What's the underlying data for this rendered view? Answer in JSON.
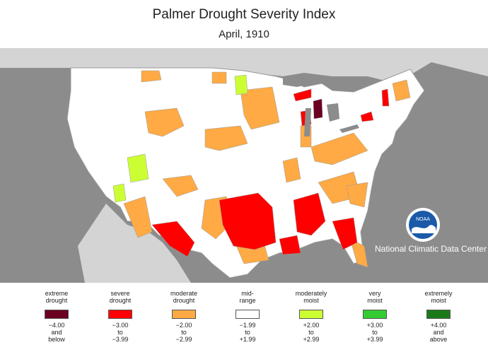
{
  "title": "Palmer Drought Severity Index",
  "subtitle": "April, 1910",
  "agency": "National Climatic Data Center",
  "logo_text": "NOAA",
  "colors": {
    "extreme_drought": "#6b0021",
    "severe_drought": "#ff0000",
    "moderate_drought": "#ffaa44",
    "mid_range": "#ffffff",
    "moderately_moist": "#ccff33",
    "very_moist": "#33cc33",
    "extremely_moist": "#1a7a1a",
    "background": "#8c8c8c",
    "land_outside": "#d4d4d4"
  },
  "legend": [
    {
      "label": "extreme\ndrought",
      "range": "−4.00\nand\nbelow",
      "color": "#6b0021"
    },
    {
      "label": "severe\ndrought",
      "range": "−3.00\nto\n−3.99",
      "color": "#ff0000"
    },
    {
      "label": "moderate\ndrought",
      "range": "−2.00\nto\n−2.99",
      "color": "#ffaa44"
    },
    {
      "label": "mid-\nrange",
      "range": "−1.99\nto\n+1.99",
      "color": "#ffffff"
    },
    {
      "label": "moderately\nmoist",
      "range": "+2.00\nto\n+2.99",
      "color": "#ccff33"
    },
    {
      "label": "very\nmoist",
      "range": "+3.00\nto\n+3.99",
      "color": "#33cc33"
    },
    {
      "label": "extremely\nmoist",
      "range": "+4.00\nand\nabove",
      "color": "#1a7a1a"
    }
  ]
}
